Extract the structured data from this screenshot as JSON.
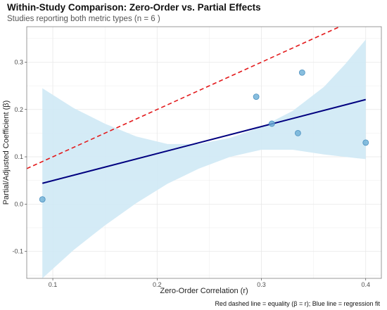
{
  "header": {
    "title": "Within-Study Comparison: Zero-Order vs. Partial Effects",
    "subtitle": "Studies reporting both metric types (n = 6 )",
    "caption": "Red dashed line = equality (β = r); Blue line = regression fit"
  },
  "colors": {
    "points": "#6aaed6",
    "points_stroke": "#4a8fbf",
    "regression_line": "#00007f",
    "equality_line": "#e31a1c",
    "confidence_band": "#cfe9f5",
    "grid": "#e8e8e8",
    "panel_border": "#7f7f7f"
  },
  "chart_data": {
    "type": "scatter",
    "title": "Within-Study Comparison: Zero-Order vs. Partial Effects",
    "subtitle": "Studies reporting both metric types (n = 6 )",
    "xlabel": "Zero-Order Correlation (r)",
    "ylabel": "Partial/Adjusted Coefficient (β)",
    "xlim": [
      0.075,
      0.415
    ],
    "ylim": [
      -0.157,
      0.375
    ],
    "x_ticks": [
      0.1,
      0.2,
      0.3,
      0.4
    ],
    "x_tick_labels": [
      "0.1",
      "0.2",
      "0.3",
      "0.4"
    ],
    "y_ticks": [
      -0.1,
      0.0,
      0.1,
      0.2,
      0.3
    ],
    "y_tick_labels": [
      "-0.1",
      "0.0",
      "0.1",
      "0.2",
      "0.3"
    ],
    "grid": true,
    "points": [
      {
        "x": 0.09,
        "y": 0.01
      },
      {
        "x": 0.295,
        "y": 0.227
      },
      {
        "x": 0.31,
        "y": 0.17
      },
      {
        "x": 0.335,
        "y": 0.15
      },
      {
        "x": 0.339,
        "y": 0.278
      },
      {
        "x": 0.4,
        "y": 0.13
      }
    ],
    "regression_line": {
      "x": [
        0.09,
        0.4
      ],
      "y": [
        0.044,
        0.221
      ]
    },
    "equality_line": {
      "slope": 1,
      "intercept": 0
    },
    "confidence_band": {
      "x": [
        0.09,
        0.12,
        0.15,
        0.18,
        0.21,
        0.24,
        0.27,
        0.3,
        0.33,
        0.36,
        0.38,
        0.4
      ],
      "lower": [
        -0.157,
        -0.097,
        -0.045,
        0.002,
        0.043,
        0.075,
        0.1,
        0.115,
        0.115,
        0.105,
        0.1,
        0.095
      ],
      "upper": [
        0.245,
        0.203,
        0.17,
        0.143,
        0.127,
        0.127,
        0.14,
        0.163,
        0.197,
        0.248,
        0.295,
        0.348
      ]
    }
  }
}
